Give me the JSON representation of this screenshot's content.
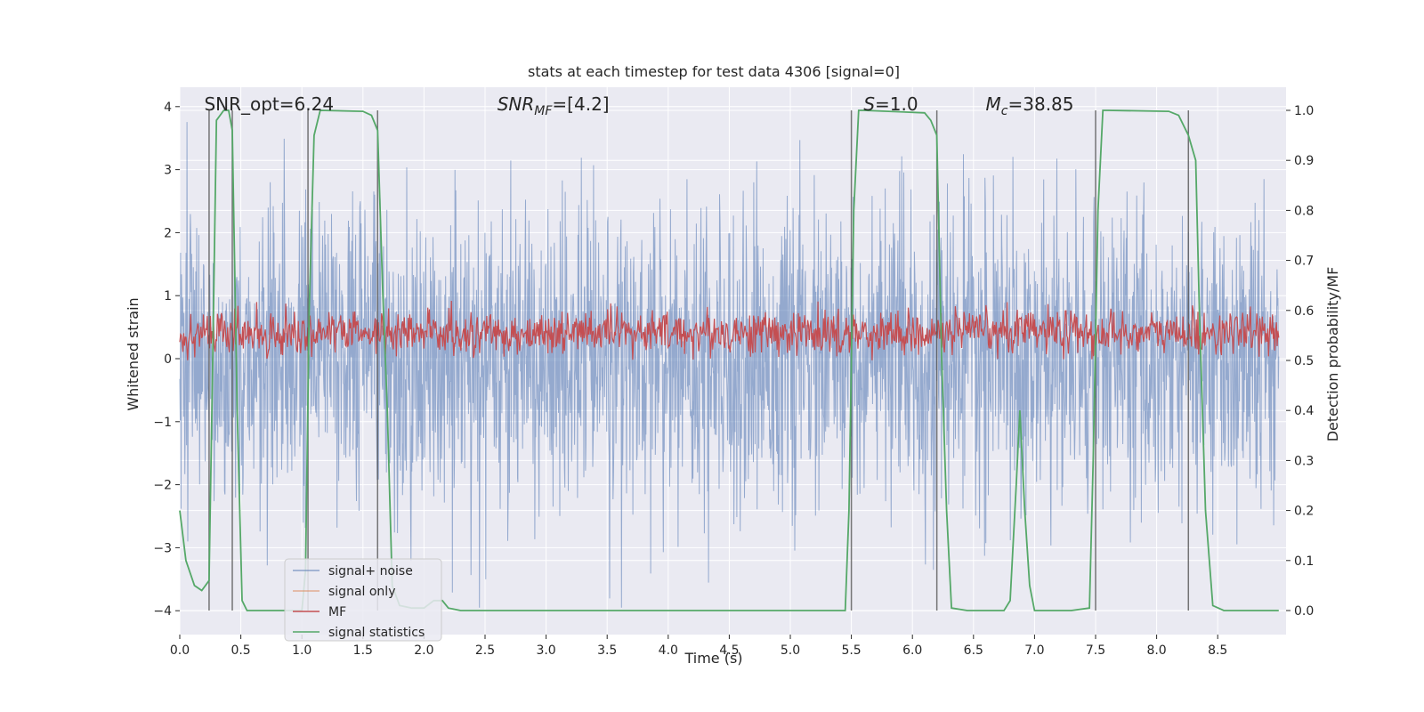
{
  "chart_data": {
    "type": "line",
    "title": "stats at each timestep for test data 4306 [signal=0]",
    "xlabel": "Time (s)",
    "ylabel_left": "Whitened strain",
    "ylabel_right": "Detection probability/MF",
    "xlim": [
      0.0,
      9.0
    ],
    "ylim_left": [
      -4.4,
      4.35
    ],
    "ylim_right": [
      -0.05,
      1.035
    ],
    "x_ticks": [
      "0.0",
      "0.5",
      "1.0",
      "1.5",
      "2.0",
      "2.5",
      "3.0",
      "3.5",
      "4.0",
      "4.5",
      "5.0",
      "5.5",
      "6.0",
      "6.5",
      "7.0",
      "7.5",
      "8.0",
      "8.5"
    ],
    "y_ticks_left": [
      "−4",
      "−3",
      "−2",
      "−1",
      "0",
      "1",
      "2",
      "3",
      "4"
    ],
    "y_ticks_right": [
      "0.0",
      "0.1",
      "0.2",
      "0.3",
      "0.4",
      "0.5",
      "0.6",
      "0.7",
      "0.8",
      "0.9",
      "1.0"
    ],
    "grid": true,
    "legend_position": "lower-left",
    "annotations": [
      {
        "label": "SNR_opt=6.24",
        "x": 0.2,
        "y": 4.0
      },
      {
        "label": "SNR_MF=[4.2]",
        "x": 2.6,
        "y": 4.0
      },
      {
        "label": "S=1.0",
        "x": 5.6,
        "y": 4.0
      },
      {
        "label": "M_c=38.85",
        "x": 6.6,
        "y": 4.0
      }
    ],
    "vlines_x": [
      0.24,
      0.43,
      1.05,
      1.62,
      5.5,
      6.2,
      7.5,
      8.26
    ],
    "series": [
      {
        "name": "signal+ noise",
        "color": "#4c72b0",
        "alpha": 0.5,
        "description_values": "whitened noise, amplitude range approx -4 to 4",
        "y_range": [
          -4.0,
          4.0
        ]
      },
      {
        "name": "signal only",
        "color": "#dd8452",
        "values": []
      },
      {
        "name": "MF",
        "color": "#c44e52",
        "axis": "right",
        "y_range": [
          0.5,
          0.62
        ]
      },
      {
        "name": "signal statistics",
        "color": "#55a868",
        "axis": "right",
        "points": [
          [
            0.0,
            0.2
          ],
          [
            0.05,
            0.1
          ],
          [
            0.12,
            0.05
          ],
          [
            0.18,
            0.04
          ],
          [
            0.24,
            0.06
          ],
          [
            0.27,
            0.5
          ],
          [
            0.3,
            0.98
          ],
          [
            0.36,
            1.0
          ],
          [
            0.4,
            1.0
          ],
          [
            0.43,
            0.96
          ],
          [
            0.47,
            0.4
          ],
          [
            0.51,
            0.02
          ],
          [
            0.55,
            0.0
          ],
          [
            0.8,
            0.0
          ],
          [
            1.0,
            0.0
          ],
          [
            1.03,
            0.08
          ],
          [
            1.06,
            0.6
          ],
          [
            1.1,
            0.95
          ],
          [
            1.15,
            1.0
          ],
          [
            1.5,
            0.998
          ],
          [
            1.57,
            0.99
          ],
          [
            1.62,
            0.96
          ],
          [
            1.66,
            0.65
          ],
          [
            1.7,
            0.4
          ],
          [
            1.74,
            0.05
          ],
          [
            1.8,
            0.01
          ],
          [
            1.9,
            0.005
          ],
          [
            2.0,
            0.005
          ],
          [
            2.08,
            0.02
          ],
          [
            2.15,
            0.02
          ],
          [
            2.2,
            0.005
          ],
          [
            2.3,
            0.0
          ],
          [
            3.0,
            0.0
          ],
          [
            4.0,
            0.0
          ],
          [
            5.0,
            0.0
          ],
          [
            5.45,
            0.0
          ],
          [
            5.48,
            0.2
          ],
          [
            5.52,
            0.8
          ],
          [
            5.56,
            1.0
          ],
          [
            5.6,
            1.0
          ],
          [
            6.1,
            0.995
          ],
          [
            6.15,
            0.98
          ],
          [
            6.2,
            0.95
          ],
          [
            6.24,
            0.5
          ],
          [
            6.28,
            0.2
          ],
          [
            6.32,
            0.005
          ],
          [
            6.45,
            0.0
          ],
          [
            6.75,
            0.0
          ],
          [
            6.8,
            0.02
          ],
          [
            6.85,
            0.25
          ],
          [
            6.88,
            0.4
          ],
          [
            6.92,
            0.2
          ],
          [
            6.96,
            0.05
          ],
          [
            7.0,
            0.0
          ],
          [
            7.3,
            0.0
          ],
          [
            7.45,
            0.005
          ],
          [
            7.48,
            0.3
          ],
          [
            7.52,
            0.8
          ],
          [
            7.56,
            1.0
          ],
          [
            7.6,
            1.0
          ],
          [
            8.1,
            0.998
          ],
          [
            8.18,
            0.99
          ],
          [
            8.26,
            0.95
          ],
          [
            8.32,
            0.9
          ],
          [
            8.35,
            0.6
          ],
          [
            8.4,
            0.2
          ],
          [
            8.46,
            0.01
          ],
          [
            8.55,
            0.0
          ],
          [
            9.0,
            0.0
          ]
        ]
      }
    ]
  }
}
